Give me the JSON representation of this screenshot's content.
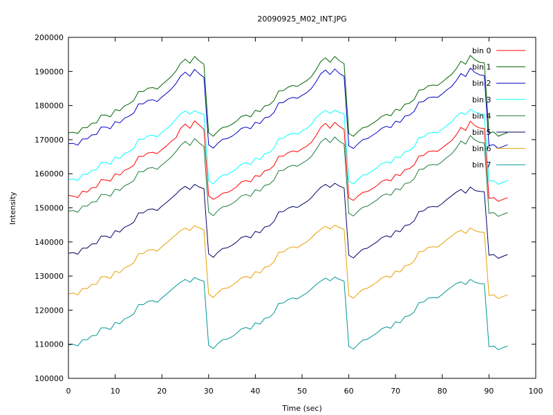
{
  "chart_data": {
    "type": "line",
    "title": "20090925_M02_INT.JPG",
    "xlabel": "Time (sec)",
    "ylabel": "Intensity",
    "xlim": [
      0,
      100
    ],
    "ylim": [
      100000,
      200000
    ],
    "xticks": [
      0,
      10,
      20,
      30,
      40,
      50,
      60,
      70,
      80,
      90,
      100
    ],
    "yticks": [
      100000,
      110000,
      120000,
      130000,
      140000,
      150000,
      160000,
      170000,
      180000,
      190000,
      200000
    ],
    "grid": false,
    "legend_position": "top-right",
    "x": [
      0,
      1,
      2,
      3,
      4,
      5,
      6,
      7,
      8,
      9,
      10,
      11,
      12,
      13,
      14,
      15,
      16,
      17,
      18,
      19,
      20,
      21,
      22,
      23,
      24,
      25,
      26,
      27,
      28,
      29,
      30,
      31,
      32,
      33,
      34,
      35,
      36,
      37,
      38,
      39,
      40,
      41,
      42,
      43,
      44,
      45,
      46,
      47,
      48,
      49,
      50,
      51,
      52,
      53,
      54,
      55,
      56,
      57,
      58,
      59,
      60,
      61,
      62,
      63,
      64,
      65,
      66,
      67,
      68,
      69,
      70,
      71,
      72,
      73,
      74,
      75,
      76,
      77,
      78,
      79,
      80,
      81,
      82,
      83,
      84,
      85,
      86,
      87,
      88,
      89,
      90,
      91,
      92,
      93,
      94
    ],
    "series": [
      {
        "name": "bin 0",
        "color": "#ff0000",
        "values": [
          153700,
          153400,
          153000,
          154900,
          154600,
          155900,
          156000,
          158300,
          158200,
          157800,
          160000,
          159600,
          161000,
          161600,
          162500,
          165100,
          165100,
          166100,
          166300,
          165900,
          167100,
          168200,
          169500,
          170500,
          173300,
          174600,
          173300,
          175500,
          174300,
          173000,
          153500,
          152500,
          153200,
          154300,
          154500,
          155200,
          156200,
          157600,
          158000,
          157600,
          159500,
          159200,
          160900,
          161200,
          162400,
          165100,
          165200,
          166200,
          166700,
          166400,
          167300,
          168100,
          169200,
          171200,
          173600,
          174800,
          173300,
          175100,
          173900,
          173000,
          152900,
          152200,
          153500,
          154500,
          154800,
          155600,
          156500,
          157700,
          158300,
          157900,
          159800,
          159500,
          161200,
          161500,
          162600,
          165200,
          165400,
          166500,
          166700,
          166600,
          167600,
          168700,
          169700,
          171400,
          173600,
          172700,
          175400,
          174100,
          173400,
          173300,
          152800,
          153000,
          151900,
          152500,
          153000
        ]
      },
      {
        "name": "bin 1",
        "color": "#006400",
        "values": [
          172000,
          172200,
          171800,
          173500,
          173500,
          174800,
          174900,
          177200,
          177200,
          176700,
          178800,
          178500,
          179900,
          180500,
          181500,
          184100,
          184100,
          185100,
          185300,
          184800,
          186100,
          187300,
          188500,
          190100,
          192400,
          193600,
          192400,
          194400,
          193100,
          192100,
          172000,
          171000,
          172500,
          173600,
          173800,
          174500,
          175500,
          176800,
          177200,
          176700,
          178600,
          178200,
          179900,
          180200,
          181500,
          184300,
          184400,
          185400,
          185900,
          185600,
          186500,
          187300,
          188500,
          190500,
          192900,
          194000,
          192700,
          194400,
          193100,
          192300,
          171800,
          171000,
          172400,
          173500,
          173800,
          174700,
          175600,
          176800,
          177400,
          177000,
          178900,
          178600,
          180400,
          180700,
          181800,
          184500,
          184700,
          185800,
          186000,
          185900,
          186900,
          188100,
          189100,
          190800,
          193000,
          192100,
          194700,
          193400,
          192700,
          192500,
          172000,
          172300,
          171000,
          171600,
          172100
        ]
      },
      {
        "name": "bin 2",
        "color": "#0000c8",
        "values": [
          168800,
          168900,
          168400,
          170200,
          170200,
          171400,
          171500,
          173700,
          173700,
          173200,
          175300,
          174900,
          176300,
          176900,
          177800,
          180500,
          180500,
          181500,
          181700,
          181200,
          182500,
          183600,
          184800,
          186400,
          188600,
          189800,
          188600,
          190600,
          189300,
          188300,
          168500,
          167500,
          169000,
          170100,
          170300,
          171000,
          172000,
          173300,
          173700,
          173200,
          175100,
          174700,
          176400,
          176700,
          178000,
          180800,
          180900,
          181900,
          182400,
          182100,
          183000,
          183800,
          185000,
          187000,
          189300,
          190400,
          189100,
          190700,
          189400,
          188600,
          168200,
          167400,
          168800,
          170000,
          170300,
          171200,
          172100,
          173300,
          173900,
          173500,
          175400,
          175100,
          176900,
          177200,
          178300,
          181000,
          181200,
          182300,
          182500,
          182400,
          183400,
          184600,
          185600,
          187300,
          189400,
          188500,
          191000,
          189700,
          189000,
          188800,
          168300,
          168500,
          167400,
          168000,
          168500
        ]
      },
      {
        "name": "bin 3",
        "color": "#00ffff",
        "values": [
          158300,
          158500,
          158000,
          159800,
          159800,
          161000,
          161100,
          163300,
          163300,
          162800,
          164900,
          164500,
          165900,
          166500,
          167400,
          170100,
          170100,
          171100,
          171300,
          170800,
          172100,
          173200,
          174400,
          176000,
          177600,
          178400,
          177500,
          178500,
          177800,
          177400,
          158000,
          157000,
          158500,
          159600,
          159800,
          160500,
          161500,
          162800,
          163200,
          162700,
          164600,
          164200,
          165900,
          166200,
          167500,
          170300,
          170400,
          171400,
          171900,
          171600,
          172500,
          173300,
          174500,
          176500,
          177600,
          178600,
          177700,
          178600,
          178000,
          177600,
          157800,
          157000,
          158400,
          159600,
          159900,
          160800,
          161700,
          162900,
          163500,
          163100,
          165000,
          164700,
          166500,
          166800,
          167900,
          170600,
          170800,
          171900,
          172100,
          172000,
          173000,
          174200,
          175200,
          176900,
          177900,
          177300,
          178900,
          178100,
          177600,
          177400,
          157800,
          158000,
          156900,
          157500,
          158000
        ]
      },
      {
        "name": "bin 4",
        "color": "#1e7b3c",
        "values": [
          149000,
          149200,
          148700,
          150500,
          150500,
          151700,
          151800,
          153900,
          153900,
          153400,
          155500,
          155100,
          156500,
          157100,
          158000,
          160600,
          160600,
          161600,
          161800,
          161300,
          162600,
          163700,
          164900,
          166500,
          168300,
          169500,
          168300,
          170300,
          169000,
          168000,
          148700,
          147700,
          149200,
          150300,
          150500,
          151200,
          152200,
          153500,
          153900,
          153400,
          155300,
          154900,
          156600,
          156900,
          158200,
          160900,
          161000,
          162000,
          162500,
          162200,
          163100,
          163900,
          165100,
          167100,
          169300,
          170400,
          169100,
          170800,
          169500,
          168700,
          148400,
          147600,
          149000,
          150200,
          150500,
          151400,
          152300,
          153500,
          154100,
          153700,
          155600,
          155300,
          157100,
          157400,
          158500,
          161200,
          161400,
          162500,
          162700,
          162600,
          163600,
          164800,
          165800,
          167500,
          169600,
          168700,
          171200,
          169900,
          169200,
          169000,
          148400,
          148600,
          147500,
          148100,
          148600
        ]
      },
      {
        "name": "bin 5",
        "color": "#000064",
        "values": [
          136700,
          136900,
          136400,
          138200,
          138200,
          139400,
          139500,
          141700,
          141700,
          141200,
          143300,
          142900,
          144300,
          144900,
          145800,
          148500,
          148500,
          149500,
          149700,
          149200,
          150500,
          151600,
          152800,
          154000,
          155400,
          156300,
          155400,
          156900,
          156100,
          155600,
          136500,
          135500,
          137000,
          138100,
          138300,
          139000,
          140000,
          141300,
          141700,
          141200,
          143100,
          142700,
          144400,
          144700,
          146000,
          148800,
          148900,
          149900,
          150400,
          150100,
          151000,
          151800,
          153000,
          154600,
          156000,
          156900,
          156000,
          157200,
          156400,
          155800,
          136100,
          135300,
          136700,
          137900,
          138200,
          139100,
          140000,
          141200,
          141800,
          141400,
          143300,
          143000,
          144800,
          145100,
          146200,
          148900,
          149100,
          150200,
          150400,
          150300,
          151300,
          152500,
          153500,
          154600,
          155400,
          154300,
          156100,
          155100,
          154800,
          154700,
          136100,
          136300,
          135200,
          135800,
          136300
        ]
      },
      {
        "name": "bin 6",
        "color": "#e6a000",
        "values": [
          124800,
          125000,
          124500,
          126300,
          126300,
          127500,
          127600,
          129800,
          129800,
          129300,
          131400,
          131000,
          132400,
          133000,
          133900,
          136600,
          136600,
          137600,
          137800,
          137300,
          138600,
          139700,
          140900,
          142100,
          143300,
          144100,
          143300,
          144800,
          144100,
          143600,
          124700,
          123700,
          125200,
          126300,
          126500,
          127200,
          128200,
          129500,
          129900,
          129400,
          131300,
          130900,
          132600,
          132900,
          134200,
          137000,
          137100,
          138100,
          138600,
          138300,
          139200,
          140000,
          141200,
          142600,
          143700,
          144600,
          143800,
          144900,
          144200,
          143700,
          124300,
          123500,
          124900,
          126100,
          126400,
          127300,
          128200,
          129400,
          130000,
          129600,
          131500,
          131200,
          133000,
          133300,
          134400,
          137100,
          137300,
          138400,
          138600,
          138500,
          139500,
          140700,
          141700,
          142800,
          143400,
          142500,
          144100,
          143300,
          142900,
          142800,
          124300,
          124500,
          123400,
          124000,
          124500
        ]
      },
      {
        "name": "bin 7",
        "color": "#009696",
        "values": [
          109800,
          110000,
          109500,
          111300,
          111300,
          112500,
          112600,
          114800,
          114800,
          114300,
          116400,
          116000,
          117400,
          118000,
          118900,
          121600,
          121600,
          122600,
          122800,
          122300,
          123600,
          124700,
          125900,
          127100,
          128200,
          129000,
          128200,
          129600,
          128900,
          128500,
          109700,
          108700,
          110200,
          111300,
          111500,
          112200,
          113200,
          114500,
          114900,
          114400,
          116300,
          115900,
          117600,
          117900,
          119200,
          122000,
          122100,
          123100,
          123600,
          123300,
          124200,
          125000,
          126200,
          127500,
          128500,
          129400,
          128600,
          129700,
          129000,
          128500,
          109400,
          108600,
          110000,
          111200,
          111500,
          112400,
          113300,
          114500,
          115100,
          114700,
          116600,
          116300,
          118100,
          118400,
          119500,
          122200,
          122400,
          123500,
          123700,
          123600,
          124600,
          125800,
          126800,
          127800,
          128300,
          127500,
          129000,
          128200,
          127800,
          127700,
          109300,
          109500,
          108400,
          109000,
          109500
        ]
      }
    ]
  }
}
